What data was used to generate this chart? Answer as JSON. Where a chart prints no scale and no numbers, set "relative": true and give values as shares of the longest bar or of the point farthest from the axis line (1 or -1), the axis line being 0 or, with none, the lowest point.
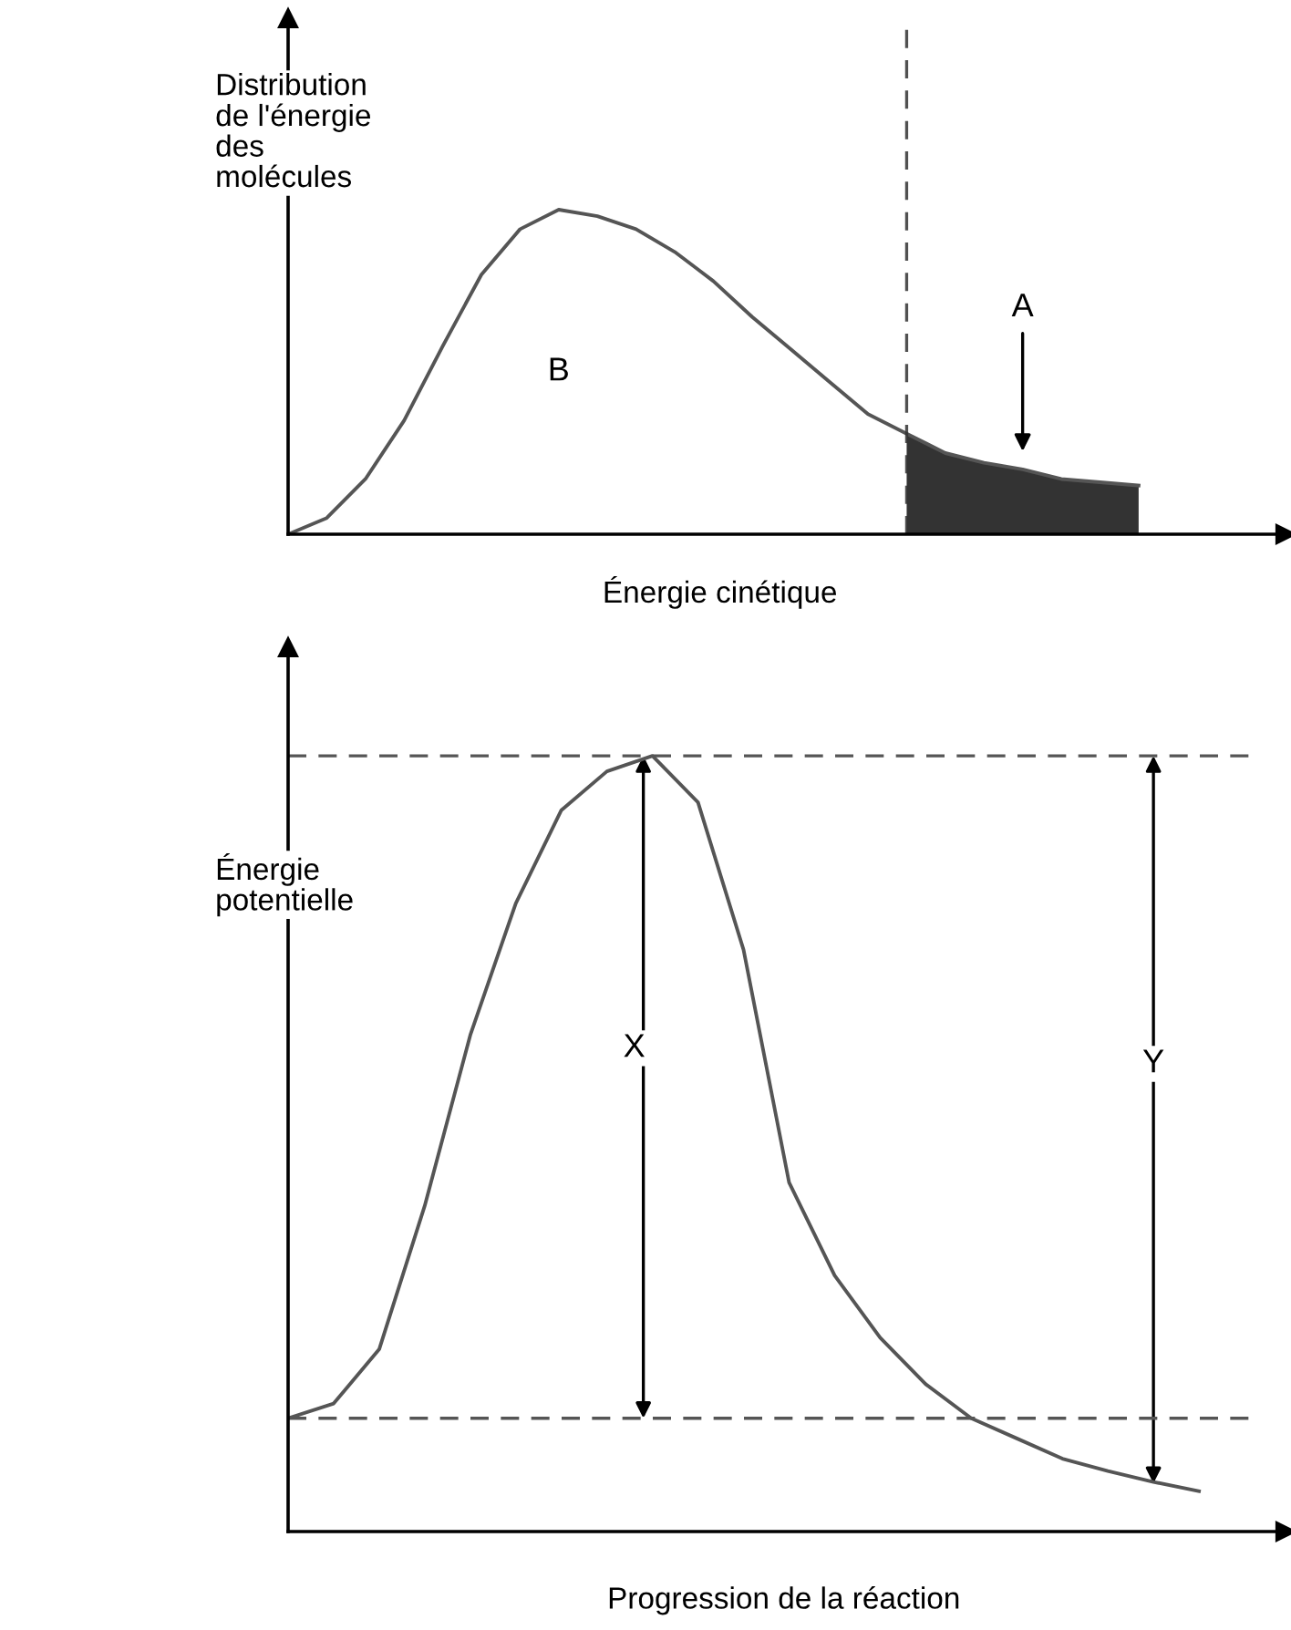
{
  "chart_data": [
    {
      "type": "line",
      "relative": true,
      "ylabel": "Distribution\nde l'énergie\ndes\nmolécules",
      "xlabel": "Énergie cinétique",
      "categories": [
        null,
        null,
        null,
        null,
        null,
        null,
        null,
        null,
        null,
        null,
        null,
        null,
        null,
        null,
        null,
        null,
        null,
        null,
        null,
        null,
        null,
        null,
        null
      ],
      "series": [
        {
          "color": "#555555",
          "values": [
            0,
            0.05,
            0.17,
            0.35,
            0.58,
            0.8,
            0.94,
            1.0,
            0.98,
            0.94,
            0.87,
            0.78,
            0.67,
            0.57,
            0.47,
            0.37,
            0.31,
            0.25,
            0.22,
            0.2,
            0.17,
            0.16,
            0.15
          ]
        },
        {
          "type": "area",
          "color": "#333333",
          "values": [
            null,
            null,
            null,
            null,
            null,
            null,
            null,
            null,
            null,
            null,
            null,
            null,
            null,
            null,
            null,
            null,
            0.31,
            0.25,
            0.22,
            0.2,
            0.17,
            0.16,
            0.15
          ]
        }
      ],
      "annotations": [
        "A",
        "B"
      ]
    },
    {
      "type": "line",
      "relative": true,
      "ylabel": "Énergie\npotentielle",
      "xlabel": "Progression de la réaction",
      "categories": [
        null,
        null,
        null,
        null,
        null,
        null,
        null,
        null,
        null,
        null,
        null,
        null,
        null,
        null,
        null,
        null,
        null,
        null,
        null,
        null,
        null
      ],
      "series": [
        {
          "color": "#555555",
          "values": [
            0.146,
            0.165,
            0.235,
            0.42,
            0.64,
            0.81,
            0.93,
            0.98,
            1.0,
            0.94,
            0.75,
            0.45,
            0.33,
            0.25,
            0.19,
            0.146,
            0.12,
            0.094,
            0.078,
            0.064,
            0.052
          ]
        }
      ],
      "ref_lines": [
        {
          "axis": "y",
          "value": 1.0,
          "line_style": "dashed",
          "color": "#555555"
        },
        {
          "axis": "y",
          "value": 0.146,
          "line_style": "dashed",
          "color": "#555555"
        }
      ],
      "annotations": [
        "X",
        "Y"
      ]
    }
  ]
}
